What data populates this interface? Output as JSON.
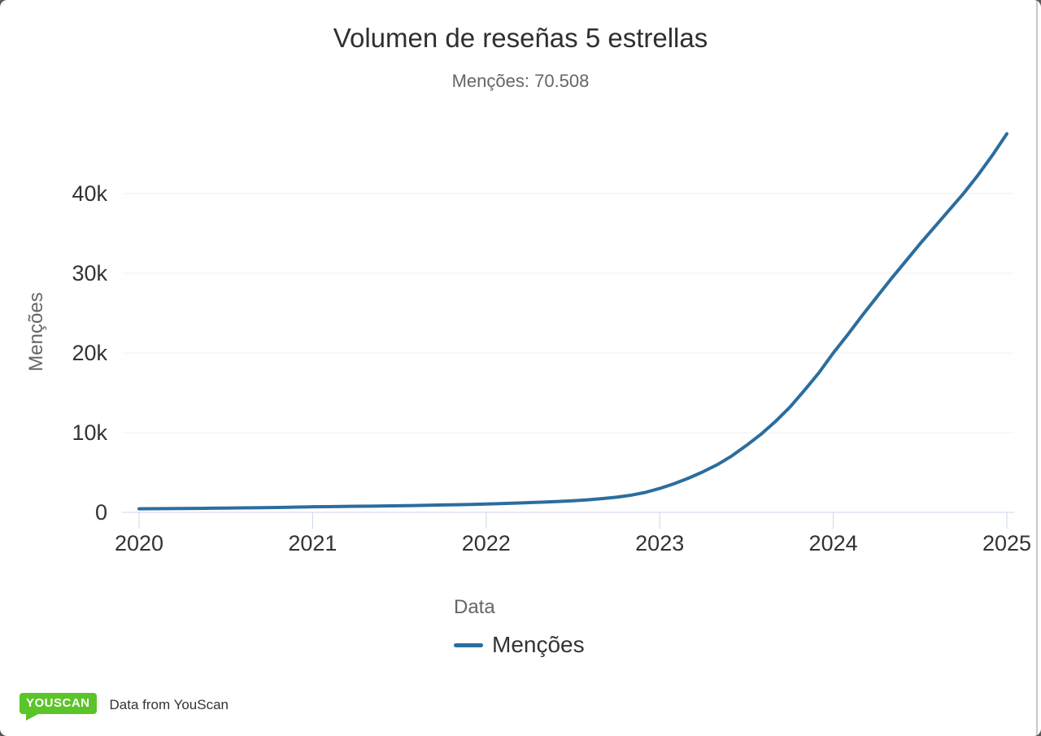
{
  "title": "Volumen de reseñas 5 estrellas",
  "subtitle": "Menções: 70.508",
  "legend": {
    "title": "Data",
    "items": [
      {
        "label": "Menções",
        "color": "#2b6d9e"
      }
    ]
  },
  "footer": {
    "badge_text": "YOUSCAN",
    "badge_color": "#5ac428",
    "text": "Data from YouScan"
  },
  "colors": {
    "line": "#2b6d9e",
    "grid": "#f0f0f0",
    "axis": "#ccd6eb",
    "label_dark": "#333333",
    "label_gray": "#666666"
  },
  "chart_data": {
    "type": "line",
    "title": "Volumen de reseñas 5 estrellas",
    "subtitle": "Menções: 70.508",
    "ylabel": "Menções",
    "legend_title": "Data",
    "legend_position": "bottom-center",
    "grid": true,
    "ylim": [
      0,
      50000
    ],
    "ytick_values": [
      0,
      10000,
      20000,
      30000,
      40000
    ],
    "ytick_labels": [
      "0",
      "10k",
      "20k",
      "30k",
      "40k"
    ],
    "xtick_labels": [
      "2020",
      "2021",
      "2022",
      "2023",
      "2024",
      "2025"
    ],
    "x": [
      "2020-01",
      "2020-02",
      "2020-03",
      "2020-04",
      "2020-05",
      "2020-06",
      "2020-07",
      "2020-08",
      "2020-09",
      "2020-10",
      "2020-11",
      "2020-12",
      "2021-01",
      "2021-02",
      "2021-03",
      "2021-04",
      "2021-05",
      "2021-06",
      "2021-07",
      "2021-08",
      "2021-09",
      "2021-10",
      "2021-11",
      "2021-12",
      "2022-01",
      "2022-02",
      "2022-03",
      "2022-04",
      "2022-05",
      "2022-06",
      "2022-07",
      "2022-08",
      "2022-09",
      "2022-10",
      "2022-11",
      "2022-12",
      "2023-01",
      "2023-02",
      "2023-03",
      "2023-04",
      "2023-05",
      "2023-06",
      "2023-07",
      "2023-08",
      "2023-09",
      "2023-10",
      "2023-11",
      "2023-12",
      "2024-01",
      "2024-02",
      "2024-03",
      "2024-04",
      "2024-05",
      "2024-06",
      "2024-07",
      "2024-08",
      "2024-09",
      "2024-10",
      "2024-11",
      "2024-12",
      "2025-01"
    ],
    "series": [
      {
        "name": "Menções",
        "color": "#2b6d9e",
        "values": [
          450,
          460,
          470,
          480,
          500,
          520,
          540,
          560,
          580,
          600,
          630,
          660,
          700,
          720,
          740,
          760,
          780,
          800,
          830,
          860,
          890,
          930,
          960,
          1000,
          1050,
          1100,
          1160,
          1220,
          1290,
          1370,
          1460,
          1570,
          1720,
          1900,
          2150,
          2500,
          3000,
          3600,
          4300,
          5100,
          6000,
          7100,
          8400,
          9800,
          11400,
          13200,
          15300,
          17500,
          20000,
          22300,
          24700,
          27000,
          29300,
          31500,
          33700,
          35800,
          37900,
          40000,
          42300,
          44800,
          47500
        ]
      }
    ]
  }
}
